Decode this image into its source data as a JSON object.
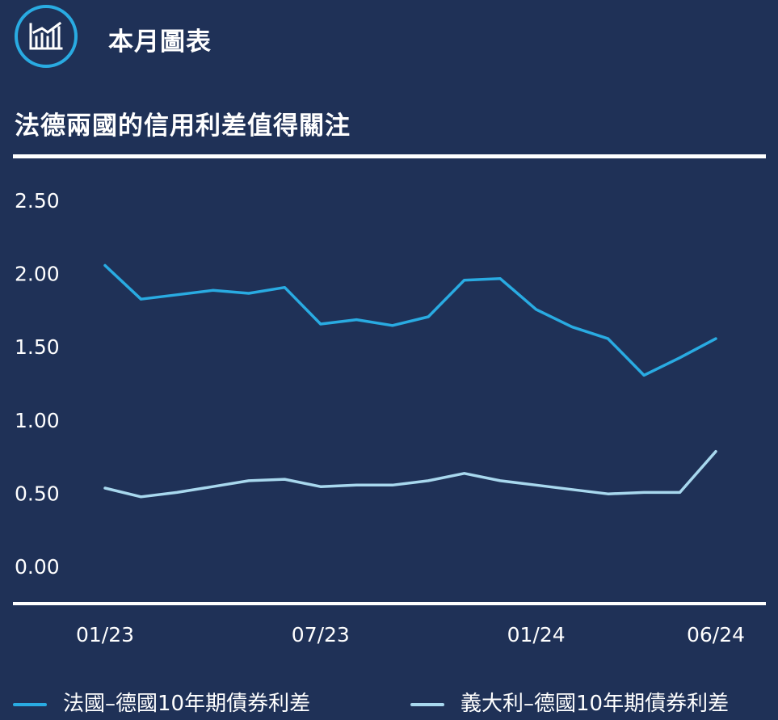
{
  "header": {
    "title": "本月圖表",
    "icon": "chart-icon",
    "accent_color": "#29abe2"
  },
  "chart_title": "法德兩國的信用利差值得關注",
  "colors": {
    "background": "#1f3157",
    "france": "#29abe2",
    "italy": "#a8d8ee",
    "text": "#ffffff"
  },
  "chart_data": {
    "type": "line",
    "title": "法德兩國的信用利差值得關注",
    "xlabel": "",
    "ylabel": "",
    "ylim": [
      0,
      2.5
    ],
    "yticks": [
      "2.50",
      "2.00",
      "1.50",
      "1.00",
      "0.50",
      "0.00"
    ],
    "xticks": [
      "01/23",
      "07/23",
      "01/24",
      "06/24"
    ],
    "grid": false,
    "legend": "bottom",
    "x": [
      "01/23",
      "02/23",
      "03/23",
      "04/23",
      "05/23",
      "06/23",
      "07/23",
      "08/23",
      "09/23",
      "10/23",
      "11/23",
      "12/23",
      "01/24",
      "02/24",
      "03/24",
      "04/24",
      "05/24",
      "06/24"
    ],
    "series": [
      {
        "name": "法國–德國10年期債券利差",
        "color": "#29abe2",
        "values": [
          2.05,
          1.82,
          1.85,
          1.88,
          1.86,
          1.9,
          1.65,
          1.68,
          1.64,
          1.7,
          1.95,
          1.96,
          1.75,
          1.63,
          1.55,
          1.3,
          1.42,
          1.55
        ]
      },
      {
        "name": "義大利–德國10年期債券利差",
        "color": "#a8d8ee",
        "values": [
          0.53,
          0.47,
          0.5,
          0.54,
          0.58,
          0.59,
          0.54,
          0.55,
          0.55,
          0.58,
          0.63,
          0.58,
          0.55,
          0.52,
          0.49,
          0.5,
          0.5,
          0.78
        ]
      }
    ]
  }
}
